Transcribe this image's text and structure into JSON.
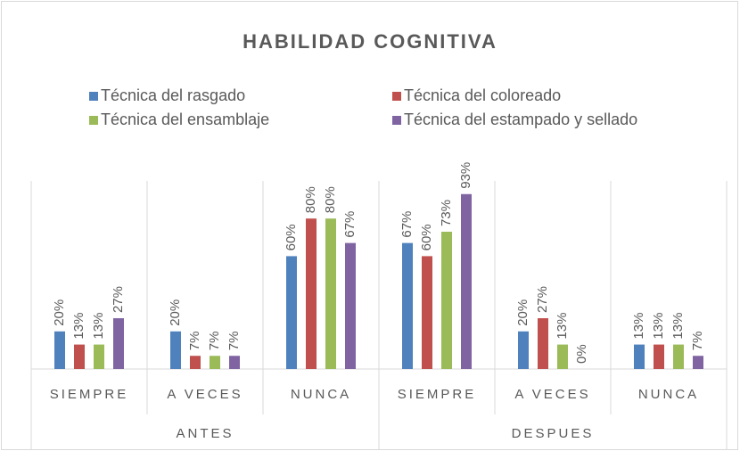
{
  "chart_data": {
    "type": "bar",
    "title": "HABILIDAD COGNITIVA",
    "categories": [
      "SIEMPRE",
      "A VECES",
      "NUNCA",
      "SIEMPRE",
      "A VECES",
      "NUNCA"
    ],
    "groups": [
      "ANTES",
      "DESPUES"
    ],
    "series": [
      {
        "name": "Técnica del rasgado",
        "color": "#4f81bd",
        "values": [
          20,
          20,
          60,
          67,
          20,
          13
        ],
        "value_labels": [
          "20%",
          "20%",
          "60%",
          "67%",
          "20%",
          "13%"
        ]
      },
      {
        "name": "Técnica del coloreado",
        "color": "#c0504d",
        "values": [
          13,
          7,
          80,
          60,
          27,
          13
        ],
        "value_labels": [
          "13%",
          "7%",
          "80%",
          "60%",
          "27%",
          "13%"
        ]
      },
      {
        "name": "Técnica del ensamblaje",
        "color": "#9bbb59",
        "values": [
          13,
          7,
          80,
          73,
          13,
          13
        ],
        "value_labels": [
          "13%",
          "7%",
          "80%",
          "73%",
          "13%",
          "13%"
        ]
      },
      {
        "name": "Técnica del estampado y sellado",
        "color": "#8064a2",
        "values": [
          27,
          7,
          67,
          93,
          0,
          7
        ],
        "value_labels": [
          "27%",
          "7%",
          "67%",
          "93%",
          "0%",
          "7%"
        ]
      }
    ],
    "legend": "top"
  }
}
